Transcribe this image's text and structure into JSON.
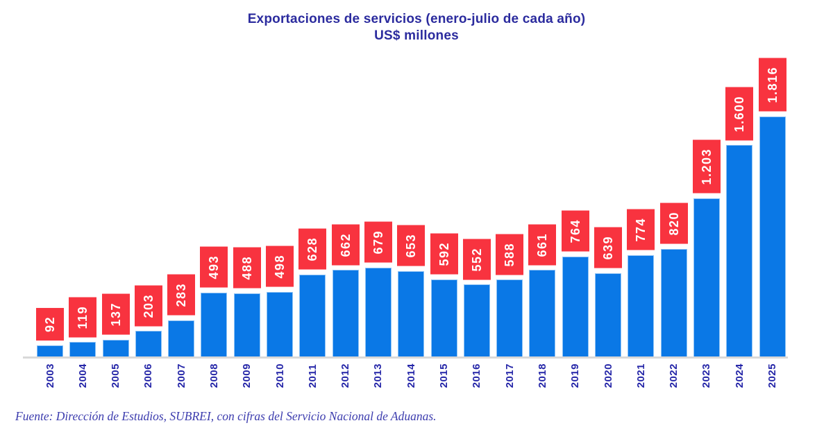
{
  "chart_data": {
    "type": "bar",
    "title": "Exportaciones de servicios (enero-julio de cada año)",
    "subtitle": "US$ millones",
    "categories": [
      "2003",
      "2004",
      "2005",
      "2006",
      "2007",
      "2008",
      "2009",
      "2010",
      "2011",
      "2012",
      "2013",
      "2014",
      "2015",
      "2016",
      "2017",
      "2018",
      "2019",
      "2020",
      "2021",
      "2022",
      "2023",
      "2024",
      "2025"
    ],
    "values": [
      92,
      119,
      137,
      203,
      283,
      493,
      488,
      498,
      628,
      662,
      679,
      653,
      592,
      552,
      588,
      661,
      764,
      639,
      774,
      820,
      1203,
      1600,
      1816
    ],
    "labels": [
      "92",
      "119",
      "137",
      "203",
      "283",
      "493",
      "488",
      "498",
      "628",
      "662",
      "679",
      "653",
      "592",
      "552",
      "588",
      "661",
      "764",
      "639",
      "774",
      "820",
      "1.203",
      "1.600",
      "1.816"
    ],
    "xlabel": "",
    "ylabel": "",
    "ylim": [
      0,
      1816
    ],
    "grid": false,
    "legend": "none",
    "source": "Fuente: Dirección de Estudios, SUBREI, con cifras del Servicio Nacional de Aduanas."
  },
  "colors": {
    "bar": "#0A78E6",
    "label_bg": "#F8333F",
    "label_text": "#FFFFFF",
    "title": "#2B2B9E",
    "year_label": "#2526A8",
    "source": "#3C3CAE",
    "axis_line": "#D9D9D9"
  }
}
